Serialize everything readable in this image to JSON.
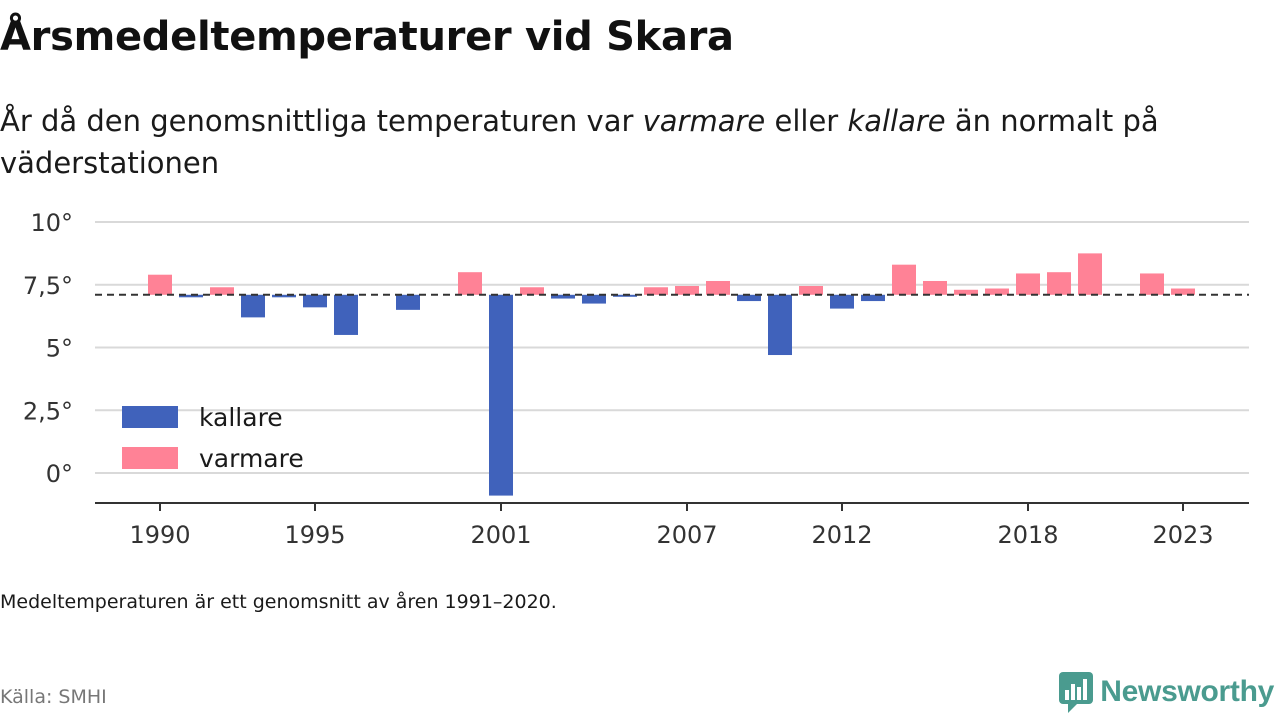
{
  "header": {
    "title": "Årsmedeltemperaturer vid Skara",
    "subtitle_pre": "År då den genomsnittliga temperaturen var ",
    "subtitle_em1": "varmare",
    "subtitle_mid": " eller ",
    "subtitle_em2": "kallare",
    "subtitle_post": " än normalt på väderstationen"
  },
  "footer": {
    "note": "Medeltemperaturen är ett genomsnitt av åren 1991–2020.",
    "source": "Källa: SMHI",
    "brand": "Newsworthy",
    "brand_icon": "newsworthy-logo-icon"
  },
  "colors": {
    "kallare": "#4062bb",
    "varmare": "#ff8296",
    "grid": "#d9d9d9",
    "axis": "#333333",
    "reference": "#333333",
    "brand": "#4a9b8f"
  },
  "chart_data": {
    "type": "bar",
    "title": "Årsmedeltemperaturer vid Skara",
    "x": [
      1990,
      1991,
      1992,
      1993,
      1994,
      1995,
      1996,
      1997,
      1998,
      1999,
      2000,
      2001,
      2002,
      2003,
      2004,
      2005,
      2006,
      2007,
      2008,
      2009,
      2010,
      2011,
      2012,
      2013,
      2014,
      2015,
      2016,
      2017,
      2018,
      2019,
      2020,
      2021,
      2022,
      2023
    ],
    "values": [
      7.9,
      7.0,
      7.4,
      6.2,
      7.0,
      6.6,
      5.5,
      null,
      6.5,
      null,
      8.0,
      -0.9,
      7.4,
      6.95,
      6.75,
      7.05,
      7.4,
      7.45,
      7.65,
      6.85,
      4.7,
      7.45,
      6.55,
      6.85,
      8.3,
      7.65,
      7.3,
      7.35,
      7.95,
      8.0,
      8.75,
      null,
      7.95,
      7.35
    ],
    "reference": 7.1,
    "series": [
      {
        "name": "kallare"
      },
      {
        "name": "varmare"
      }
    ],
    "x_ticks": [
      1990,
      1995,
      2001,
      2007,
      2012,
      2018,
      2023
    ],
    "x_tick_labels": [
      "1990",
      "1995",
      "2001",
      "2007",
      "2012",
      "2018",
      "2023"
    ],
    "y_ticks": [
      0,
      2.5,
      5,
      7.5,
      10
    ],
    "y_tick_labels": [
      "0°",
      "2,5°",
      "5°",
      "7,5°",
      "10°"
    ],
    "ylim": [
      -1.1,
      10
    ],
    "xlim": [
      1989.8,
      2025.2
    ],
    "grid": true,
    "legend_position": "bottom-left"
  }
}
